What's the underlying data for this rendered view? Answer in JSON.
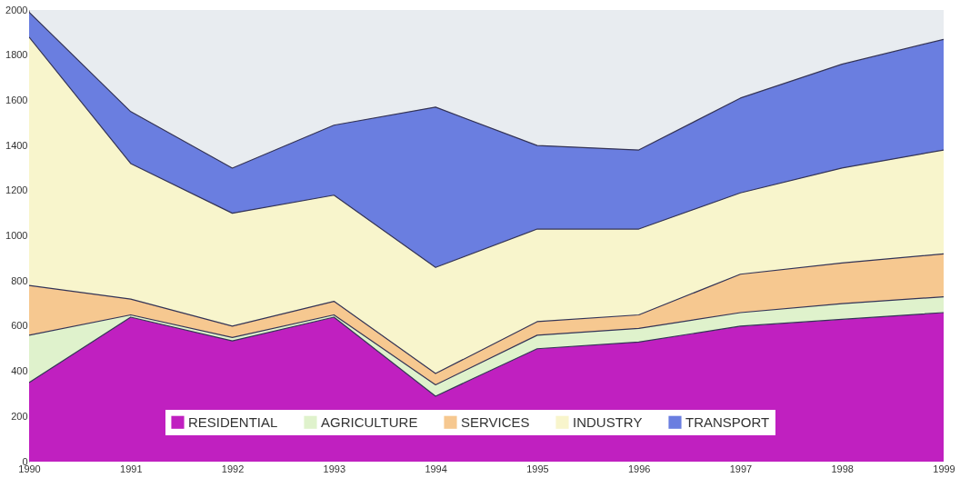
{
  "chart_data": {
    "type": "area",
    "stacked": true,
    "categories": [
      "1990",
      "1991",
      "1992",
      "1993",
      "1994",
      "1995",
      "1996",
      "1997",
      "1998",
      "1999"
    ],
    "series": [
      {
        "name": "RESIDENTIAL",
        "color": "#c020c0",
        "values": [
          350,
          640,
          535,
          640,
          290,
          500,
          530,
          600,
          630,
          660
        ]
      },
      {
        "name": "AGRICULTURE",
        "color": "#dff2cc",
        "values": [
          210,
          10,
          15,
          10,
          50,
          60,
          60,
          60,
          70,
          70
        ]
      },
      {
        "name": "SERVICES",
        "color": "#f6c890",
        "values": [
          220,
          70,
          50,
          60,
          50,
          60,
          60,
          170,
          180,
          190
        ]
      },
      {
        "name": "INDUSTRY",
        "color": "#f8f5cc",
        "values": [
          1100,
          600,
          500,
          470,
          470,
          410,
          380,
          360,
          420,
          460
        ]
      },
      {
        "name": "TRANSPORT",
        "color": "#6a7ee0",
        "values": [
          110,
          230,
          200,
          310,
          710,
          370,
          350,
          420,
          460,
          490
        ]
      }
    ],
    "ylim": [
      0,
      2000
    ],
    "yticks": [
      0,
      200,
      400,
      600,
      800,
      1000,
      1200,
      1400,
      1600,
      1800,
      2000
    ],
    "grid": false,
    "legend": "bottom"
  }
}
